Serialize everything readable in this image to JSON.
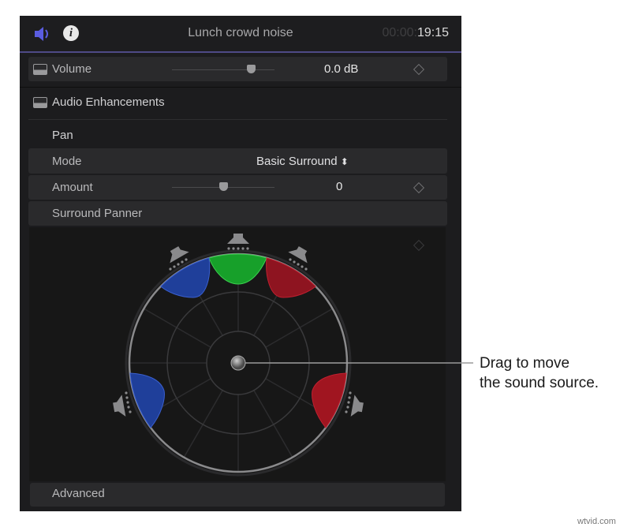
{
  "header": {
    "title": "Lunch crowd noise",
    "timecode_dim": "00:00:",
    "timecode": "19:15",
    "speaker_icon": "speaker-icon",
    "info_icon": "info-icon"
  },
  "volume": {
    "label": "Volume",
    "value": "0.0 dB",
    "slider_fraction": 0.75
  },
  "audio_enhancements": {
    "label": "Audio Enhancements"
  },
  "pan": {
    "label": "Pan",
    "mode": {
      "label": "Mode",
      "value": "Basic Surround"
    },
    "amount": {
      "label": "Amount",
      "value": "0",
      "slider_fraction": 0.5
    },
    "surround_panner": {
      "label": "Surround Panner"
    }
  },
  "advanced": {
    "label": "Advanced"
  },
  "annotation": {
    "line1": "Drag to move",
    "line2": "the sound source."
  },
  "colors": {
    "accent": "#5a5ce0",
    "left": "#1f3f9a",
    "center": "#17a02a",
    "right": "#9a1520"
  },
  "watermark": "wtvid.com"
}
